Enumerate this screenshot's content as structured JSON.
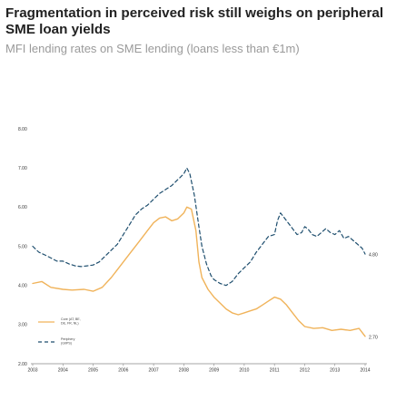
{
  "header": {
    "title": "Fragmentation in perceived risk still weighs on peripheral SME loan yields",
    "subtitle": "MFI lending rates on SME lending (loans less than €1m)"
  },
  "chart_data": {
    "type": "line",
    "xlim": [
      2003,
      2014
    ],
    "ylim": [
      2.0,
      8.0
    ],
    "xticks": [
      "2003",
      "2004",
      "2005",
      "2006",
      "2007",
      "2008",
      "2009",
      "2010",
      "2011",
      "2012",
      "2013",
      "2014"
    ],
    "yticks": [
      "8.00",
      "7.00",
      "6.00",
      "5.00",
      "4.00",
      "3.00",
      "2.00"
    ],
    "legend_position": "lower-left",
    "grid": false,
    "colors": {
      "core": "#f0b35a",
      "periphery": "#1e4e6e",
      "axis": "#888888"
    },
    "series": [
      {
        "key": "core",
        "name": "Core (AT, BE, DE, FR, NL)",
        "legend_lines": [
          "Core (AT, BE,",
          "DE, FR, NL)"
        ],
        "style": "solid",
        "end_label": "2.70",
        "x": [
          2003.0,
          2003.3,
          2003.6,
          2004.0,
          2004.3,
          2004.7,
          2005.0,
          2005.3,
          2005.6,
          2005.9,
          2006.2,
          2006.5,
          2006.8,
          2007.0,
          2007.2,
          2007.4,
          2007.6,
          2007.8,
          2008.0,
          2008.1,
          2008.25,
          2008.4,
          2008.5,
          2008.6,
          2008.8,
          2009.0,
          2009.2,
          2009.4,
          2009.6,
          2009.8,
          2010.0,
          2010.2,
          2010.4,
          2010.6,
          2010.8,
          2011.0,
          2011.2,
          2011.4,
          2011.6,
          2011.8,
          2012.0,
          2012.3,
          2012.6,
          2012.9,
          2013.2,
          2013.5,
          2013.8,
          2014.0
        ],
        "y": [
          4.05,
          4.1,
          3.95,
          3.9,
          3.88,
          3.9,
          3.85,
          3.95,
          4.2,
          4.5,
          4.8,
          5.1,
          5.4,
          5.6,
          5.72,
          5.75,
          5.65,
          5.7,
          5.85,
          6.0,
          5.95,
          5.4,
          4.6,
          4.2,
          3.9,
          3.7,
          3.55,
          3.4,
          3.3,
          3.25,
          3.3,
          3.35,
          3.4,
          3.5,
          3.6,
          3.7,
          3.65,
          3.5,
          3.3,
          3.1,
          2.95,
          2.9,
          2.92,
          2.85,
          2.88,
          2.85,
          2.9,
          2.7
        ]
      },
      {
        "key": "periphery",
        "name": "Periphery (GIIPS)",
        "legend_lines": [
          "Periphery",
          "(GIIPS)"
        ],
        "style": "dashed",
        "end_label": "4.80",
        "x": [
          2003.0,
          2003.2,
          2003.4,
          2003.6,
          2003.8,
          2004.0,
          2004.2,
          2004.4,
          2004.6,
          2004.8,
          2005.0,
          2005.2,
          2005.4,
          2005.6,
          2005.8,
          2006.0,
          2006.2,
          2006.4,
          2006.6,
          2006.8,
          2007.0,
          2007.2,
          2007.4,
          2007.6,
          2007.8,
          2008.0,
          2008.1,
          2008.2,
          2008.35,
          2008.5,
          2008.6,
          2008.75,
          2008.9,
          2009.0,
          2009.2,
          2009.4,
          2009.6,
          2009.8,
          2010.0,
          2010.2,
          2010.4,
          2010.6,
          2010.8,
          2011.0,
          2011.1,
          2011.2,
          2011.3,
          2011.45,
          2011.6,
          2011.75,
          2011.9,
          2012.0,
          2012.1,
          2012.25,
          2012.4,
          2012.55,
          2012.7,
          2012.85,
          2013.0,
          2013.15,
          2013.3,
          2013.45,
          2013.6,
          2013.75,
          2013.9,
          2014.0
        ],
        "y": [
          5.0,
          4.85,
          4.78,
          4.7,
          4.62,
          4.62,
          4.55,
          4.5,
          4.48,
          4.5,
          4.52,
          4.6,
          4.75,
          4.9,
          5.05,
          5.3,
          5.55,
          5.8,
          5.95,
          6.05,
          6.2,
          6.35,
          6.45,
          6.55,
          6.7,
          6.85,
          7.0,
          6.85,
          6.3,
          5.5,
          5.0,
          4.55,
          4.25,
          4.15,
          4.05,
          4.0,
          4.1,
          4.3,
          4.45,
          4.6,
          4.85,
          5.05,
          5.25,
          5.3,
          5.65,
          5.85,
          5.75,
          5.6,
          5.45,
          5.3,
          5.35,
          5.5,
          5.45,
          5.3,
          5.25,
          5.35,
          5.45,
          5.35,
          5.3,
          5.4,
          5.2,
          5.25,
          5.15,
          5.05,
          4.95,
          4.8
        ]
      }
    ]
  }
}
